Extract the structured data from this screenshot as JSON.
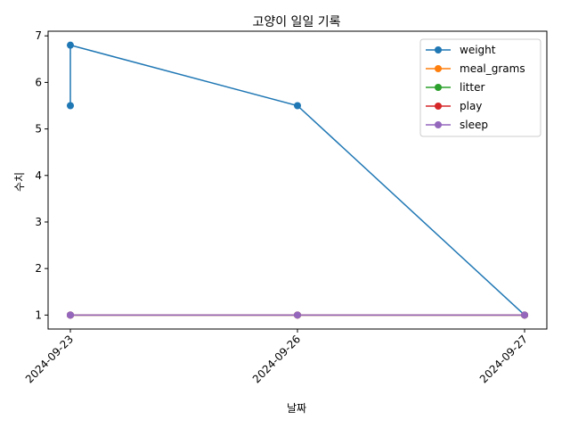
{
  "chart_data": {
    "type": "line",
    "title": "고양이 일일 기록",
    "xlabel": "날짜",
    "ylabel": "수치",
    "x": [
      "2024-09-23",
      "2024-09-23",
      "2024-09-26",
      "2024-09-27"
    ],
    "x_ticks": [
      "2024-09-23",
      "2024-09-26",
      "2024-09-27"
    ],
    "ylim": [
      0.7,
      7.1
    ],
    "y_ticks": [
      "1",
      "2",
      "3",
      "4",
      "5",
      "6",
      "7"
    ],
    "legend_position": "top-right",
    "grid": false,
    "series": [
      {
        "name": "weight",
        "color": "#1f77b4",
        "values": [
          5.5,
          6.8,
          5.5,
          1
        ]
      },
      {
        "name": "meal_grams",
        "color": "#ff7f0e",
        "values": [
          1,
          1,
          1,
          1
        ]
      },
      {
        "name": "litter",
        "color": "#2ca02c",
        "values": [
          1,
          1,
          1,
          1
        ]
      },
      {
        "name": "play",
        "color": "#d62728",
        "values": [
          1,
          1,
          1,
          1
        ]
      },
      {
        "name": "sleep",
        "color": "#9467bd",
        "values": [
          1,
          1,
          1,
          1
        ]
      }
    ]
  }
}
